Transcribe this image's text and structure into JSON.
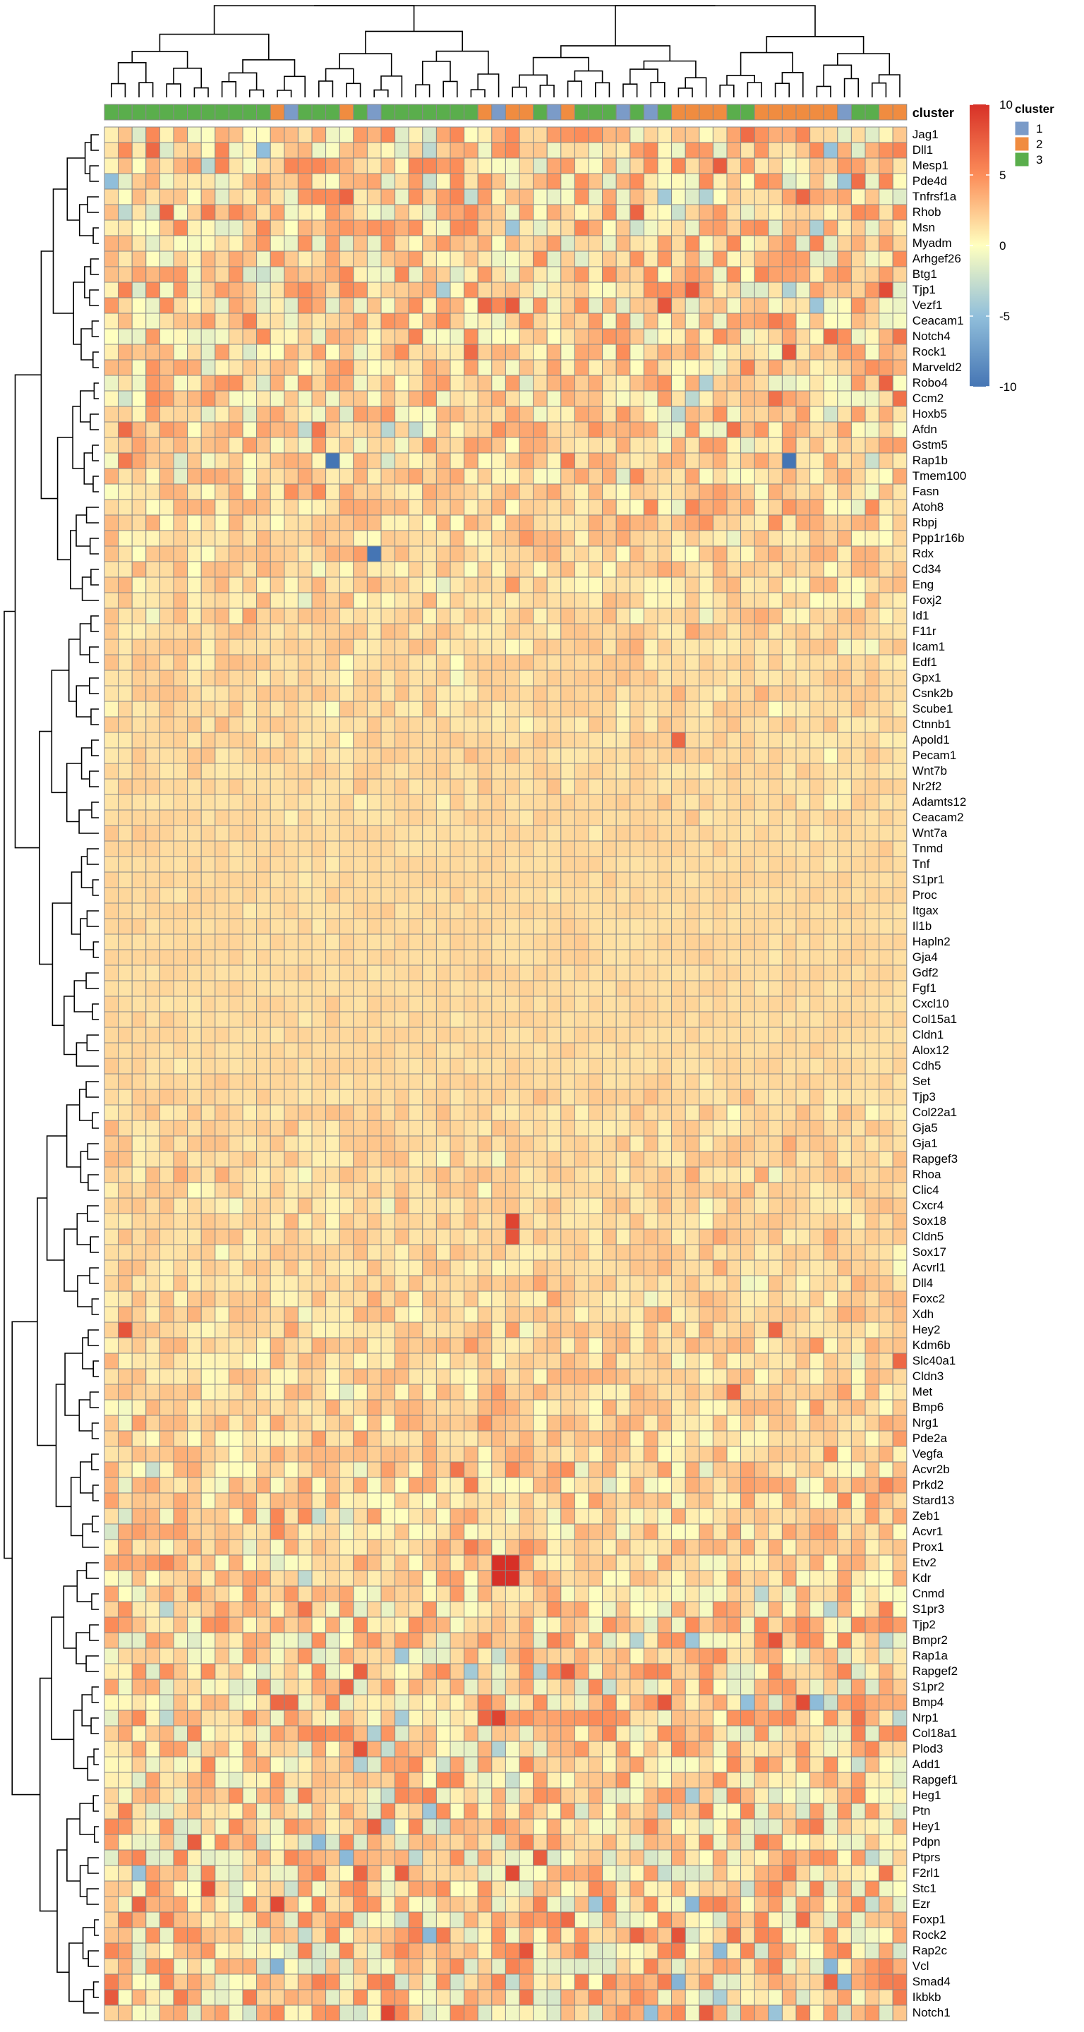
{
  "chart_data": {
    "type": "heatmap",
    "annotation_track": "cluster",
    "legend": {
      "title": "cluster",
      "entries": [
        "1",
        "2",
        "3"
      ],
      "colors": [
        "#7b9bc8",
        "#f08c40",
        "#5aae4c"
      ]
    },
    "color_scale": {
      "ticks": [
        "10",
        "5",
        "0",
        "-5",
        "-10"
      ],
      "min": -10,
      "max": 10,
      "colors": [
        "#4575b4",
        "#91bfdb",
        "#ffffbf",
        "#fc8d59",
        "#d73027"
      ]
    },
    "column_count": 58,
    "clusters": [
      3,
      3,
      3,
      3,
      3,
      3,
      3,
      3,
      3,
      3,
      3,
      3,
      2,
      1,
      3,
      3,
      3,
      2,
      3,
      1,
      3,
      3,
      3,
      3,
      3,
      3,
      3,
      2,
      1,
      2,
      2,
      3,
      1,
      2,
      3,
      3,
      3,
      1,
      3,
      1,
      3,
      2,
      2,
      2,
      2,
      3,
      3,
      2,
      2,
      2,
      2,
      2,
      2,
      1,
      3,
      3,
      2,
      2
    ],
    "row_labels": [
      "Jag1",
      "Dll1",
      "Mesp1",
      "Pde4d",
      "Tnfrsf1a",
      "Rhob",
      "Msn",
      "Myadm",
      "Arhgef26",
      "Btg1",
      "Tjp1",
      "Vezf1",
      "Ceacam1",
      "Notch4",
      "Rock1",
      "Marveld2",
      "Robo4",
      "Ccm2",
      "Hoxb5",
      "Afdn",
      "Gstm5",
      "Rap1b",
      "Tmem100",
      "Fasn",
      "Atoh8",
      "Rbpj",
      "Ppp1r16b",
      "Rdx",
      "Cd34",
      "Eng",
      "Foxj2",
      "Id1",
      "F11r",
      "Icam1",
      "Edf1",
      "Gpx1",
      "Csnk2b",
      "Scube1",
      "Ctnnb1",
      "Apold1",
      "Pecam1",
      "Wnt7b",
      "Nr2f2",
      "Adamts12",
      "Ceacam2",
      "Wnt7a",
      "Tnmd",
      "Tnf",
      "S1pr1",
      "Proc",
      "Itgax",
      "Il1b",
      "Hapln2",
      "Gja4",
      "Gdf2",
      "Fgf1",
      "Cxcl10",
      "Col15a1",
      "Cldn1",
      "Alox12",
      "Cdh5",
      "Set",
      "Tjp3",
      "Col22a1",
      "Gja5",
      "Gja1",
      "Rapgef3",
      "Rhoa",
      "Clic4",
      "Cxcr4",
      "Sox18",
      "Cldn5",
      "Sox17",
      "Acvrl1",
      "Dll4",
      "Foxc2",
      "Xdh",
      "Hey2",
      "Kdm6b",
      "Slc40a1",
      "Cldn3",
      "Met",
      "Bmp6",
      "Nrg1",
      "Pde2a",
      "Vegfa",
      "Acvr2b",
      "Prkd2",
      "Stard13",
      "Zeb1",
      "Acvr1",
      "Prox1",
      "Etv2",
      "Kdr",
      "Cnmd",
      "S1pr3",
      "Tjp2",
      "Bmpr2",
      "Rap1a",
      "Rapgef2",
      "S1pr2",
      "Bmp4",
      "Nrp1",
      "Col18a1",
      "Plod3",
      "Add1",
      "Rapgef1",
      "Heg1",
      "Ptn",
      "Hey1",
      "Pdpn",
      "Ptprs",
      "F2rl1",
      "Stc1",
      "Ezr",
      "Foxp1",
      "Rock2",
      "Rap2c",
      "Vcl",
      "Smad4",
      "Ikbkb",
      "Notch1"
    ],
    "row_variability": [
      0.9,
      0.9,
      0.9,
      0.9,
      0.9,
      0.85,
      0.85,
      0.85,
      0.9,
      0.9,
      0.9,
      0.85,
      0.8,
      0.8,
      0.8,
      0.75,
      0.75,
      0.7,
      0.7,
      0.7,
      0.65,
      0.6,
      0.55,
      0.5,
      0.5,
      0.45,
      0.45,
      0.45,
      0.4,
      0.4,
      0.4,
      0.35,
      0.3,
      0.3,
      0.3,
      0.28,
      0.26,
      0.25,
      0.24,
      0.22,
      0.2,
      0.18,
      0.16,
      0.15,
      0.14,
      0.12,
      0.1,
      0.1,
      0.1,
      0.1,
      0.1,
      0.1,
      0.1,
      0.1,
      0.1,
      0.1,
      0.1,
      0.1,
      0.1,
      0.1,
      0.12,
      0.12,
      0.18,
      0.3,
      0.25,
      0.28,
      0.3,
      0.3,
      0.28,
      0.3,
      0.3,
      0.3,
      0.3,
      0.3,
      0.3,
      0.35,
      0.4,
      0.4,
      0.4,
      0.4,
      0.4,
      0.4,
      0.45,
      0.45,
      0.45,
      0.5,
      0.6,
      0.6,
      0.6,
      0.6,
      0.6,
      0.55,
      0.6,
      0.6,
      0.7,
      0.8,
      0.85,
      0.85,
      0.85,
      0.9,
      0.9,
      0.9,
      0.85,
      0.9,
      0.85,
      0.85,
      0.85,
      0.9,
      0.95,
      0.95,
      0.95,
      0.95,
      0.95,
      0.9,
      0.95,
      0.95,
      0.95,
      1.0,
      1.0,
      1.0,
      1.0,
      1.0
    ],
    "hotspots": [
      {
        "gene": "Sox18",
        "col": 29,
        "value": 9
      },
      {
        "gene": "Cldn5",
        "col": 29,
        "value": 8
      },
      {
        "gene": "Etv2",
        "col": 29,
        "value": 10
      },
      {
        "gene": "Kdr",
        "col": 29,
        "value": 10
      },
      {
        "gene": "Etv2",
        "col": 28,
        "value": 10
      },
      {
        "gene": "Kdr",
        "col": 28,
        "value": 10
      },
      {
        "gene": "Nrp1",
        "col": 28,
        "value": 9
      },
      {
        "gene": "Rap1b",
        "col": 16,
        "value": -10
      },
      {
        "gene": "Rap1b",
        "col": 49,
        "value": -10
      },
      {
        "gene": "Rdx",
        "col": 19,
        "value": -10
      },
      {
        "gene": "Stc1",
        "col": 7,
        "value": 8
      },
      {
        "gene": "Hey2",
        "col": 1,
        "value": 8
      },
      {
        "gene": "Hey2",
        "col": 48,
        "value": 7
      },
      {
        "gene": "Met",
        "col": 45,
        "value": 7
      },
      {
        "gene": "Slc40a1",
        "col": 57,
        "value": 7
      },
      {
        "gene": "Apold1",
        "col": 41,
        "value": 7
      },
      {
        "gene": "Bmp4",
        "col": 12,
        "value": 7
      },
      {
        "gene": "Bmp4",
        "col": 13,
        "value": 7
      }
    ]
  }
}
